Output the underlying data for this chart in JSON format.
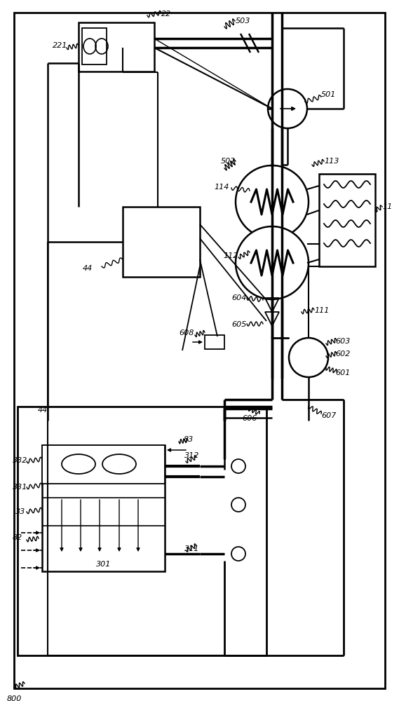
{
  "bg": "#ffffff",
  "fig_w": 5.69,
  "fig_h": 10.0,
  "dpi": 100
}
